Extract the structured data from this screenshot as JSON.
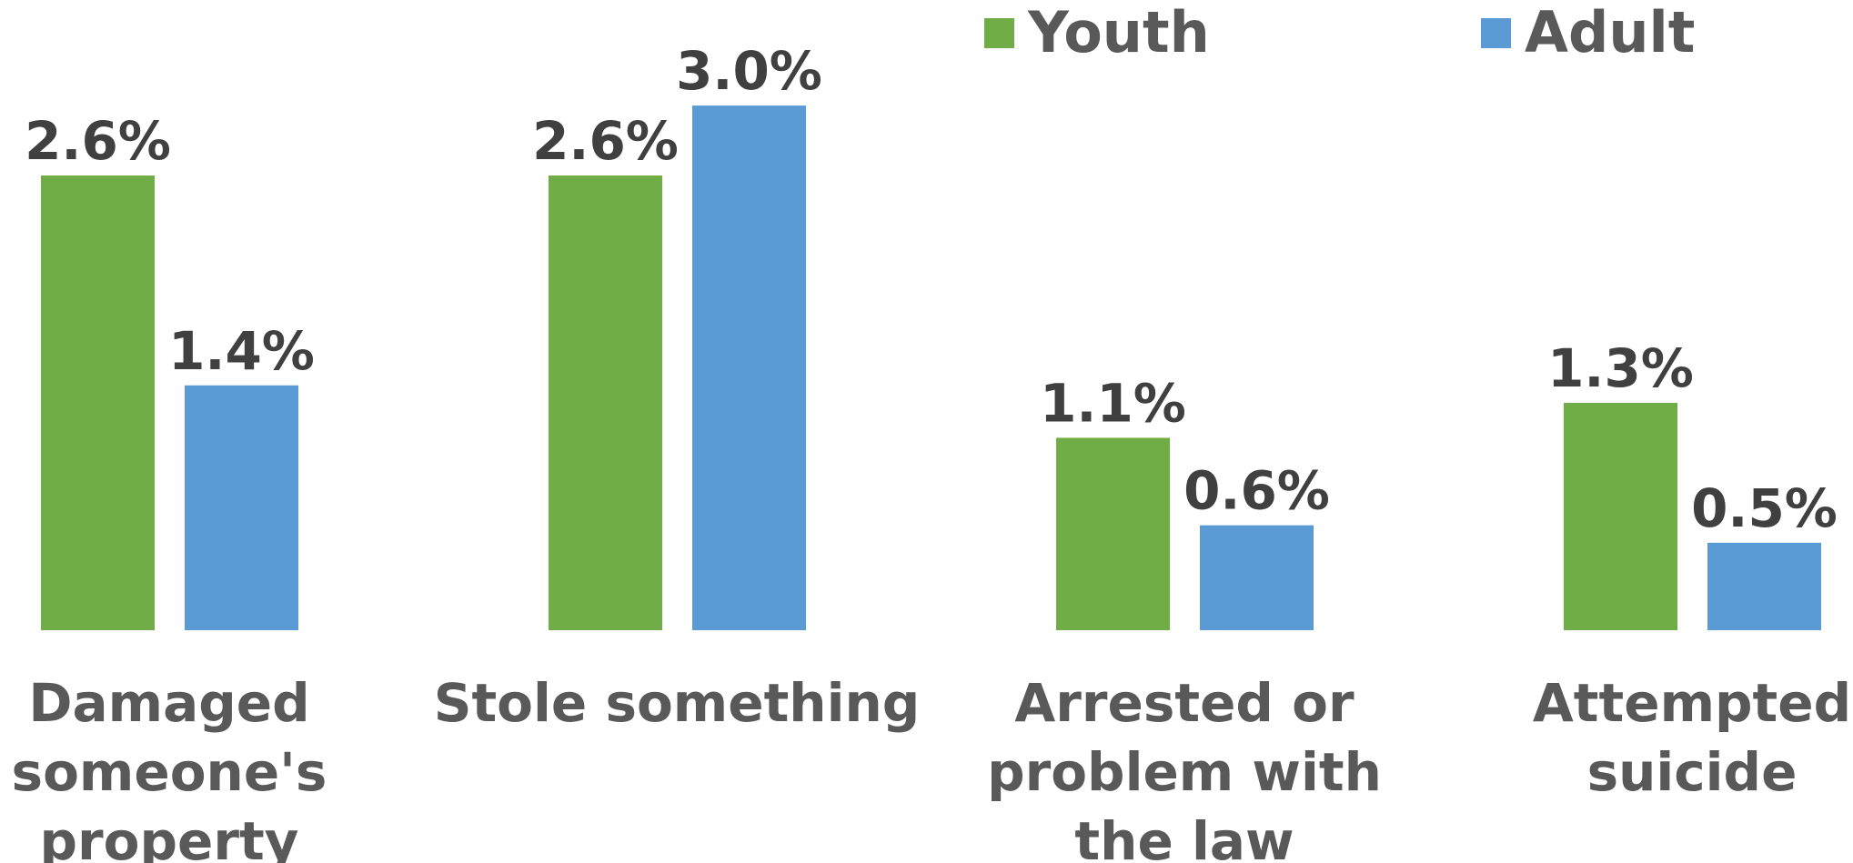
{
  "chart_data": {
    "type": "bar",
    "categories": [
      [
        "Damaged",
        "someone's",
        "property"
      ],
      [
        "Stole something"
      ],
      [
        "Arrested or",
        "problem with",
        "the law"
      ],
      [
        "Attempted",
        "suicide"
      ]
    ],
    "series": [
      {
        "name": "Youth",
        "color": "#70AD47",
        "values": [
          2.6,
          2.6,
          1.1,
          1.3
        ],
        "labels": [
          "2.6%",
          "2.6%",
          "1.1%",
          "1.3%"
        ]
      },
      {
        "name": "Adult",
        "color": "#5B9BD5",
        "values": [
          1.4,
          3.0,
          0.6,
          0.5
        ],
        "labels": [
          "1.4%",
          "3.0%",
          "0.6%",
          "0.5%"
        ]
      }
    ],
    "ylim": [
      0,
      3.4
    ],
    "grid": false,
    "legend_position": "top-right"
  }
}
